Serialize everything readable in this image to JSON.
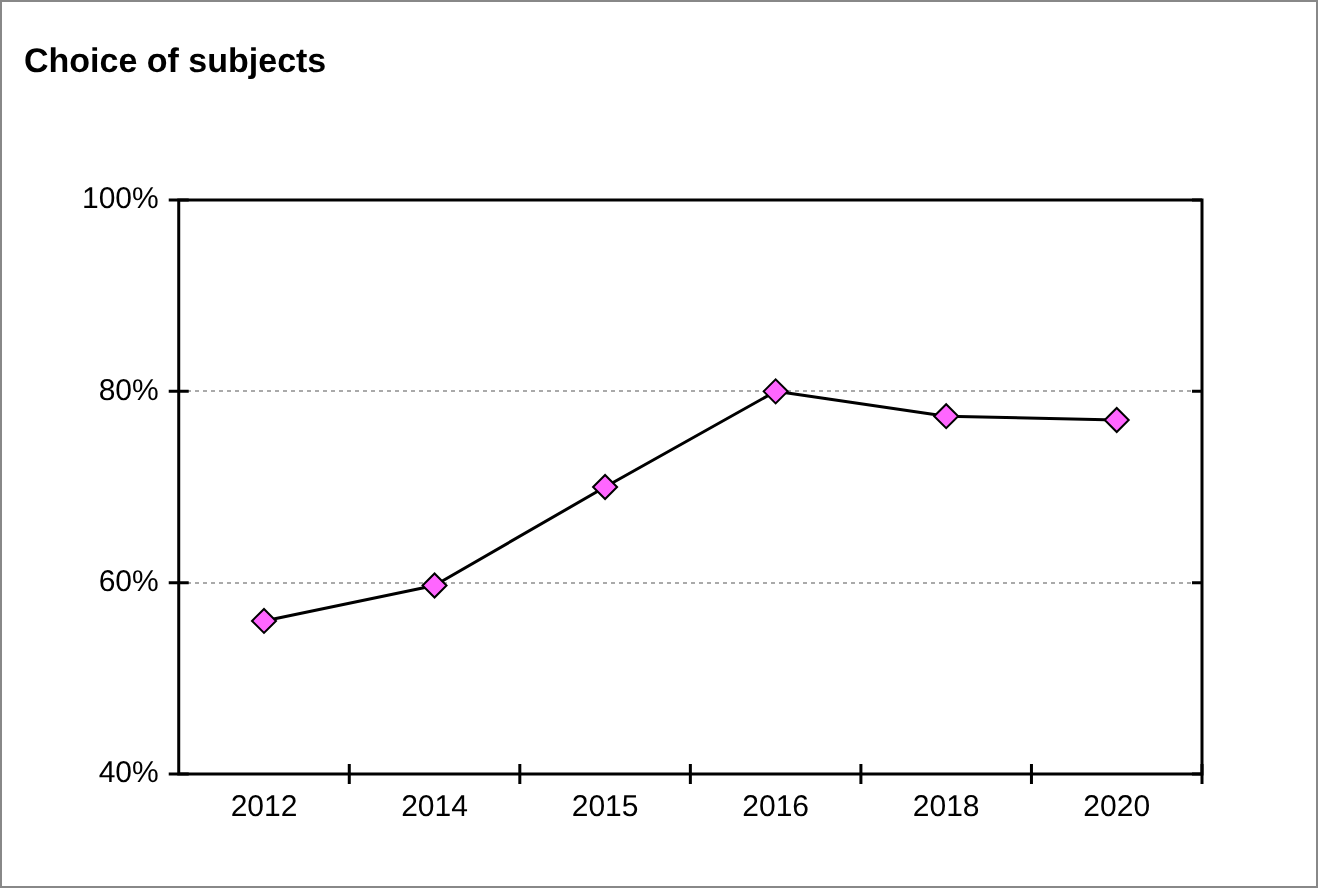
{
  "chart_data": {
    "type": "line",
    "title": "Choice of subjects",
    "categories": [
      "2012",
      "2014",
      "2015",
      "2016",
      "2018",
      "2020"
    ],
    "series": [
      {
        "color": "#000000",
        "values": [
          56,
          59.7,
          70,
          80,
          77.4,
          77
        ]
      }
    ],
    "ylim": [
      40,
      100
    ],
    "yticks": [
      {
        "value": 40,
        "label": "40%"
      },
      {
        "value": 60,
        "label": "60%"
      },
      {
        "value": 80,
        "label": "80%"
      },
      {
        "value": 100,
        "label": "100%"
      }
    ],
    "grid": "y",
    "marker": "diamond",
    "line_style": "solid",
    "legend": false
  }
}
